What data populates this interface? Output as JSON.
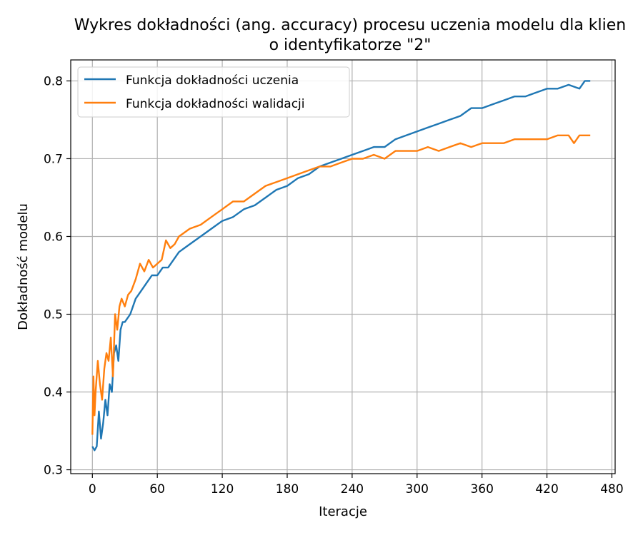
{
  "chart_data": {
    "type": "line",
    "title_line1": "Wykres dokładności (ang. accuracy) procesu uczenia modelu dla klien",
    "title_line2": "o identyfikatorze \"2\"",
    "xlabel": "Iteracje",
    "ylabel": "Dokładność modelu",
    "xlim": [
      -20,
      483
    ],
    "ylim": [
      0.295,
      0.827
    ],
    "xticks": [
      0,
      60,
      120,
      180,
      240,
      300,
      360,
      420,
      480
    ],
    "yticks": [
      0.3,
      0.4,
      0.5,
      0.6,
      0.7,
      0.8
    ],
    "xtick_labels": [
      "0",
      "60",
      "120",
      "180",
      "240",
      "300",
      "360",
      "420",
      "480"
    ],
    "ytick_labels": [
      "0.3",
      "0.4",
      "0.5",
      "0.6",
      "0.7",
      "0.8"
    ],
    "grid": true,
    "legend_position": "upper-left",
    "series": [
      {
        "name": "Funkcja dokładności uczenia",
        "color": "#1f77b4",
        "x": [
          0,
          2,
          4,
          6,
          8,
          10,
          12,
          14,
          16,
          18,
          20,
          22,
          24,
          26,
          28,
          30,
          35,
          40,
          45,
          50,
          55,
          60,
          65,
          70,
          75,
          80,
          90,
          100,
          110,
          120,
          130,
          140,
          150,
          160,
          170,
          180,
          190,
          200,
          210,
          220,
          230,
          240,
          250,
          260,
          270,
          280,
          290,
          300,
          310,
          320,
          330,
          340,
          350,
          360,
          370,
          380,
          390,
          400,
          410,
          420,
          430,
          440,
          450,
          455,
          460
        ],
        "values": [
          0.33,
          0.325,
          0.33,
          0.375,
          0.34,
          0.36,
          0.39,
          0.37,
          0.41,
          0.4,
          0.45,
          0.46,
          0.44,
          0.48,
          0.49,
          0.49,
          0.5,
          0.52,
          0.53,
          0.54,
          0.55,
          0.55,
          0.56,
          0.56,
          0.57,
          0.58,
          0.59,
          0.6,
          0.61,
          0.62,
          0.625,
          0.635,
          0.64,
          0.65,
          0.66,
          0.665,
          0.675,
          0.68,
          0.69,
          0.695,
          0.7,
          0.705,
          0.71,
          0.715,
          0.715,
          0.725,
          0.73,
          0.735,
          0.74,
          0.745,
          0.75,
          0.755,
          0.765,
          0.765,
          0.77,
          0.775,
          0.78,
          0.78,
          0.785,
          0.79,
          0.79,
          0.795,
          0.79,
          0.8,
          0.8
        ]
      },
      {
        "name": "Funkcja dokładności walidacji",
        "color": "#ff7f0e",
        "x": [
          0,
          1,
          2,
          3,
          5,
          7,
          9,
          11,
          13,
          15,
          17,
          19,
          21,
          23,
          25,
          27,
          30,
          33,
          36,
          40,
          44,
          48,
          52,
          56,
          60,
          64,
          68,
          72,
          76,
          80,
          90,
          100,
          110,
          120,
          130,
          140,
          150,
          160,
          170,
          180,
          190,
          200,
          210,
          220,
          230,
          240,
          250,
          260,
          270,
          280,
          290,
          300,
          310,
          320,
          330,
          340,
          350,
          360,
          370,
          380,
          390,
          400,
          410,
          420,
          430,
          440,
          445,
          450,
          455,
          460
        ],
        "values": [
          0.345,
          0.42,
          0.37,
          0.4,
          0.44,
          0.41,
          0.39,
          0.43,
          0.45,
          0.44,
          0.47,
          0.42,
          0.5,
          0.48,
          0.51,
          0.52,
          0.51,
          0.525,
          0.53,
          0.545,
          0.565,
          0.555,
          0.57,
          0.56,
          0.565,
          0.57,
          0.595,
          0.585,
          0.59,
          0.6,
          0.61,
          0.615,
          0.625,
          0.635,
          0.645,
          0.645,
          0.655,
          0.665,
          0.67,
          0.675,
          0.68,
          0.685,
          0.69,
          0.69,
          0.695,
          0.7,
          0.7,
          0.705,
          0.7,
          0.71,
          0.71,
          0.71,
          0.715,
          0.71,
          0.715,
          0.72,
          0.715,
          0.72,
          0.72,
          0.72,
          0.725,
          0.725,
          0.725,
          0.725,
          0.73,
          0.73,
          0.72,
          0.73,
          0.73,
          0.73
        ]
      }
    ]
  }
}
